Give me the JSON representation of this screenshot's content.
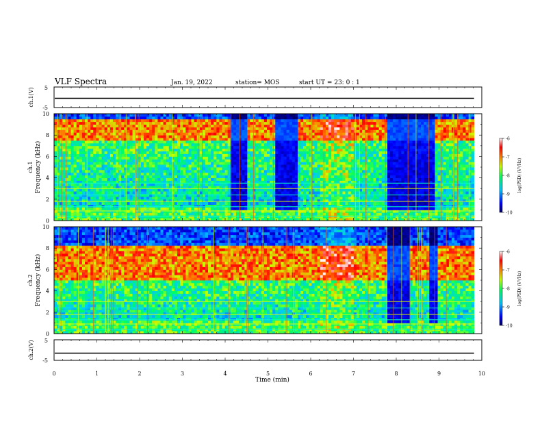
{
  "header": {
    "title": "VLF Spectra",
    "date": "Jan. 19, 2022",
    "station": "station= MOS",
    "start": "start UT =  23: 0  : 1"
  },
  "chart_data": {
    "type": "heatmap",
    "time_axis": {
      "label": "Time (min)",
      "range": [
        0,
        10
      ],
      "ticks": [
        "0",
        "1",
        "2",
        "3",
        "4",
        "5",
        "6",
        "7",
        "8",
        "9",
        "10"
      ]
    },
    "panels": [
      {
        "id": "ch1_voltage",
        "ylabel": "ch.1(V)",
        "ylim": [
          -5,
          5
        ],
        "ticks": [
          "5",
          "-5"
        ],
        "waveform_level": -0.5
      },
      {
        "id": "ch1_spectrum",
        "ylabel_top": "ch.1",
        "ylabel": "Frequency (kHz)",
        "ylim": [
          0,
          10
        ],
        "ticks": [
          "0",
          "2",
          "4",
          "6",
          "8",
          "10"
        ],
        "colorbar": {
          "label": "log(PSD) (V²/Hz)",
          "range": [
            -10,
            -6
          ],
          "ticks": [
            "-6",
            "-7",
            "-8",
            "-9",
            "-10"
          ]
        },
        "intense_band_khz": [
          7.5,
          9.5
        ],
        "quiet_intervals_min": [
          [
            4.1,
            4.5
          ],
          [
            5.2,
            5.7
          ],
          [
            7.8,
            8.9
          ]
        ],
        "bright_interval_min": [
          6.2,
          7.0
        ],
        "harmonic_lines_khz": [
          0.4,
          0.9,
          1.3,
          1.8,
          2.4,
          3.0,
          3.5
        ]
      },
      {
        "id": "ch2_spectrum",
        "ylabel_top": "ch.2",
        "ylabel": "Frequency (kHz)",
        "ylim": [
          0,
          10
        ],
        "ticks": [
          "0",
          "2",
          "4",
          "6",
          "8",
          "10"
        ],
        "colorbar": {
          "label": "log(PSD) (V²/Hz)",
          "range": [
            -10,
            -6
          ],
          "ticks": [
            "-6",
            "-7",
            "-8",
            "-9",
            "-10"
          ]
        },
        "intense_band_khz": [
          5.0,
          8.3
        ],
        "quiet_intervals_min": [
          [
            7.8,
            8.3
          ],
          [
            8.8,
            8.95
          ]
        ],
        "bright_interval_min": [
          6.2,
          7.0
        ],
        "harmonic_lines_khz": [
          0.4,
          0.9,
          1.3,
          1.8,
          2.4,
          3.0
        ]
      },
      {
        "id": "ch2_voltage",
        "ylabel": "ch.2(V)",
        "ylim": [
          -5,
          5
        ],
        "ticks": [
          "5",
          "-5"
        ],
        "waveform_level": -1.5
      }
    ]
  }
}
